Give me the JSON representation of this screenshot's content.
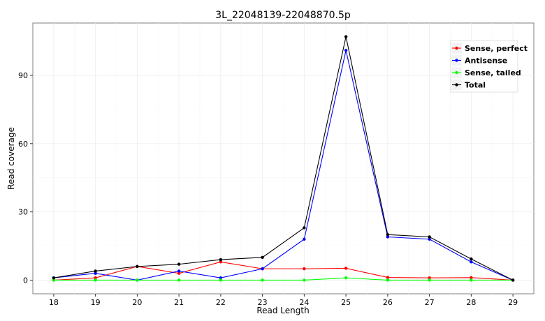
{
  "chart_data": {
    "type": "line",
    "title": "3L_22048139-22048870.5p",
    "xlabel": "Read Length",
    "ylabel": "Read coverage",
    "x": [
      18,
      19,
      20,
      21,
      22,
      23,
      24,
      25,
      26,
      27,
      28,
      29
    ],
    "xlim": [
      17.5,
      29.5
    ],
    "ylim": [
      -6,
      113
    ],
    "yticks": [
      0,
      30,
      60,
      90
    ],
    "grid": true,
    "legend_position": "top-right",
    "series": [
      {
        "name": "Sense, perfect",
        "color": "#ff0000",
        "values": [
          0,
          1,
          6,
          3,
          8,
          5,
          5,
          5.2,
          1.2,
          1,
          1.1,
          0
        ]
      },
      {
        "name": "Antisense",
        "color": "#0000ff",
        "values": [
          1,
          3,
          0,
          4,
          1,
          5,
          18,
          101,
          19,
          18,
          8,
          0
        ]
      },
      {
        "name": "Sense, tailed",
        "color": "#00ff00",
        "values": [
          0,
          0,
          0,
          0,
          0,
          0,
          0,
          1,
          0,
          0,
          0,
          0
        ]
      },
      {
        "name": "Total",
        "color": "#000000",
        "values": [
          1,
          4,
          6,
          7,
          9,
          10,
          23,
          107,
          20,
          19,
          9.3,
          0
        ]
      }
    ]
  }
}
